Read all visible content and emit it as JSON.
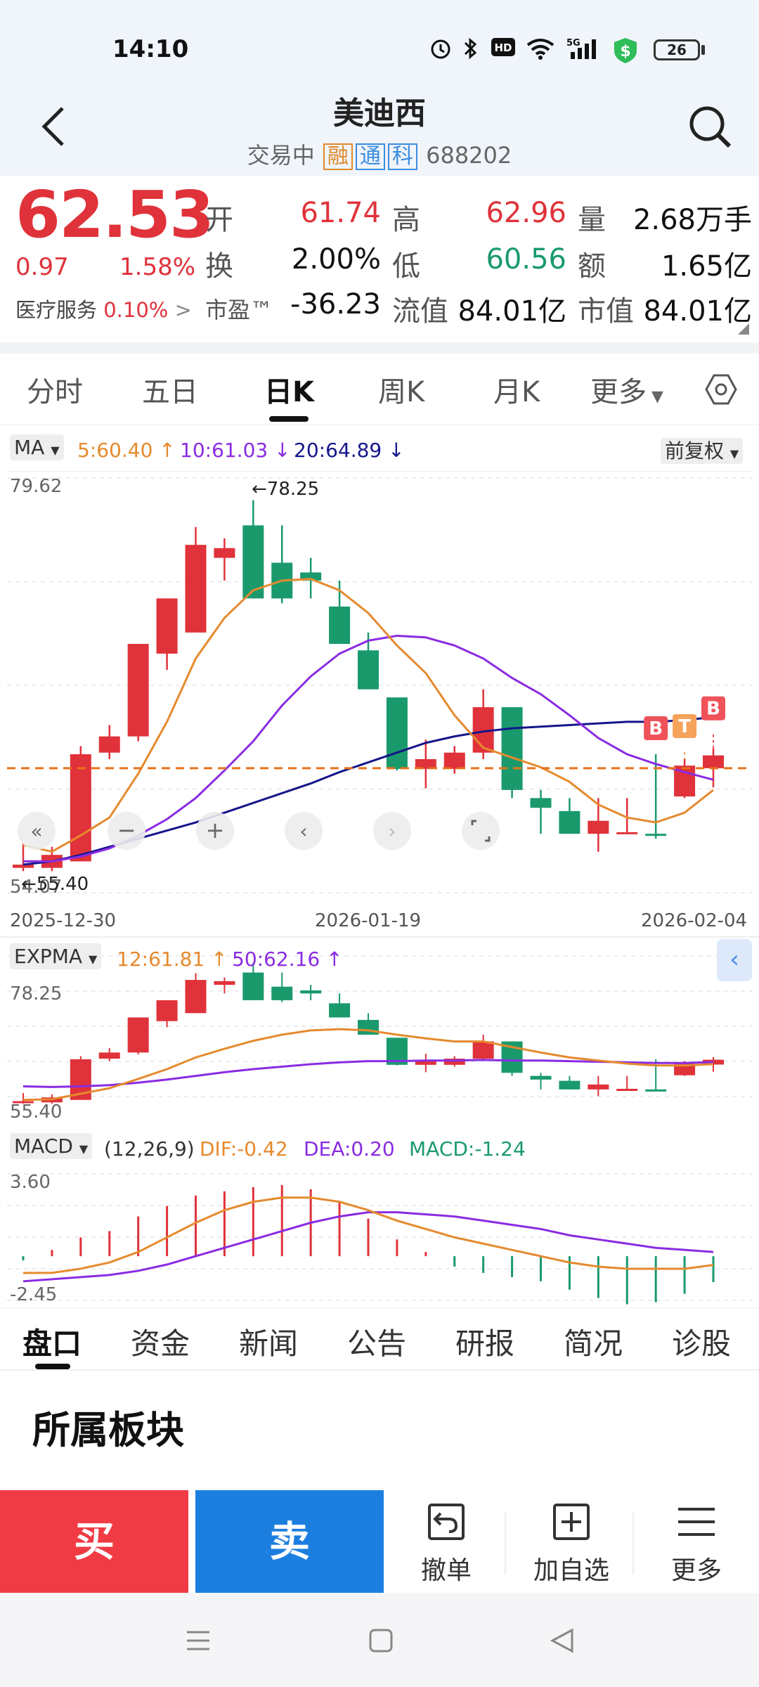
{
  "status": {
    "time": "14:10",
    "battery": "26"
  },
  "header": {
    "back_icon": "chevron-left-icon",
    "title": "美迪西",
    "trading_status": "交易中",
    "tags": [
      {
        "text": "融",
        "color": "#e08a2b"
      },
      {
        "text": "通",
        "color": "#3b8de0"
      },
      {
        "text": "科",
        "color": "#3b8de0"
      }
    ],
    "code": "688202",
    "search_icon": "search-icon"
  },
  "quote": {
    "price": "62.53",
    "change": "0.97",
    "change_pct": "1.58%",
    "sector": "医疗服务",
    "sector_pct": "0.10%",
    "open_label": "开",
    "open": "61.74",
    "high_label": "高",
    "high": "62.96",
    "volume_label": "量",
    "volume": "2.68万手",
    "turnover_label": "换",
    "turnover": "2.00%",
    "low_label": "低",
    "low": "60.56",
    "amount_label": "额",
    "amount": "1.65亿",
    "pe_label": "市盈™",
    "pe": "-36.23",
    "float_cap_label": "流值",
    "float_cap": "84.01亿",
    "mkt_cap_label": "市值",
    "mkt_cap": "84.01亿"
  },
  "period_tabs": [
    "分时",
    "五日",
    "日K",
    "周K",
    "月K",
    "更多"
  ],
  "active_period": "日K",
  "ma": {
    "label": "MA",
    "ma5": "5:60.40",
    "ma10": "10:61.03",
    "ma20": "20:64.89",
    "adjust": "前复权"
  },
  "kline": {
    "y_top": "79.62",
    "y_bottom": "54.07",
    "high_label": "←78.25",
    "low_label": "←55.40",
    "dates": [
      "2025-12-30",
      "2026-01-19",
      "2026-02-04"
    ],
    "markers": [
      "B",
      "T",
      "B"
    ]
  },
  "expma": {
    "label": "EXPMA",
    "e12": "12:61.81",
    "e50": "50:62.16",
    "y_top": "78.25",
    "y_bottom": "55.40"
  },
  "macd": {
    "label": "MACD",
    "params": "(12,26,9)",
    "dif": "DIF:-0.42",
    "dea": "DEA:0.20",
    "macd": "MACD:-1.24",
    "y_top": "3.60",
    "y_bottom": "-2.45"
  },
  "info_tabs": [
    "盘口",
    "资金",
    "新闻",
    "公告",
    "研报",
    "简况",
    "诊股"
  ],
  "section_title": "所属板块",
  "actions": {
    "buy": "买",
    "sell": "卖",
    "cancel": "撤单",
    "watch": "加自选",
    "more": "更多"
  },
  "chart_data": {
    "type": "candlestick",
    "candles": [
      {
        "o": 55.6,
        "c": 55.8,
        "h": 57.1,
        "l": 55.4
      },
      {
        "o": 55.6,
        "c": 56.4,
        "h": 56.9,
        "l": 55.4
      },
      {
        "o": 56.0,
        "c": 62.6,
        "h": 63.1,
        "l": 56.0
      },
      {
        "o": 62.7,
        "c": 63.7,
        "h": 64.4,
        "l": 62.3
      },
      {
        "o": 63.7,
        "c": 69.4,
        "h": 69.4,
        "l": 63.4
      },
      {
        "o": 68.8,
        "c": 72.2,
        "h": 72.2,
        "l": 67.8
      },
      {
        "o": 70.1,
        "c": 75.5,
        "h": 76.6,
        "l": 70.1
      },
      {
        "o": 74.7,
        "c": 75.3,
        "h": 75.9,
        "l": 73.3
      },
      {
        "o": 76.7,
        "c": 72.2,
        "h": 78.25,
        "l": 72.2
      },
      {
        "o": 74.4,
        "c": 72.2,
        "h": 76.7,
        "l": 71.9
      },
      {
        "o": 73.8,
        "c": 73.3,
        "h": 74.7,
        "l": 72.2
      },
      {
        "o": 71.7,
        "c": 69.4,
        "h": 73.3,
        "l": 69.4
      },
      {
        "o": 69.0,
        "c": 66.6,
        "h": 70.1,
        "l": 66.6
      },
      {
        "o": 66.1,
        "c": 61.7,
        "h": 66.1,
        "l": 61.6
      },
      {
        "o": 61.7,
        "c": 62.3,
        "h": 63.5,
        "l": 60.5
      },
      {
        "o": 61.7,
        "c": 62.7,
        "h": 63.1,
        "l": 61.4
      },
      {
        "o": 62.7,
        "c": 65.5,
        "h": 66.6,
        "l": 62.3
      },
      {
        "o": 65.5,
        "c": 60.4,
        "h": 65.5,
        "l": 59.9
      },
      {
        "o": 59.9,
        "c": 59.3,
        "h": 60.4,
        "l": 57.7
      },
      {
        "o": 59.1,
        "c": 57.7,
        "h": 59.9,
        "l": 57.7
      },
      {
        "o": 57.7,
        "c": 58.5,
        "h": 59.9,
        "l": 56.6
      },
      {
        "o": 57.7,
        "c": 57.8,
        "h": 59.9,
        "l": 57.7
      },
      {
        "o": 57.7,
        "c": 57.6,
        "h": 62.6,
        "l": 57.4
      },
      {
        "o": 60.0,
        "c": 61.9,
        "h": 62.3,
        "l": 59.9
      },
      {
        "o": 61.74,
        "c": 62.53,
        "h": 62.96,
        "l": 60.56
      }
    ],
    "ma5": [
      57.0,
      56.6,
      57.6,
      58.7,
      61.4,
      64.6,
      68.5,
      71.0,
      72.7,
      73.3,
      73.4,
      72.7,
      71.3,
      69.3,
      67.6,
      65.0,
      63.0,
      62.4,
      61.8,
      60.9,
      59.5,
      58.7,
      58.4,
      59.0,
      60.4
    ],
    "ma10": [
      56.0,
      56.0,
      56.3,
      56.8,
      57.6,
      58.6,
      59.9,
      61.6,
      63.4,
      65.6,
      67.4,
      68.8,
      69.6,
      69.9,
      69.8,
      69.3,
      68.5,
      67.3,
      66.3,
      65.0,
      63.6,
      62.6,
      62.0,
      61.5,
      61.03
    ],
    "ma20": [
      55.8,
      56.0,
      56.4,
      56.9,
      57.4,
      57.9,
      58.4,
      59.0,
      59.6,
      60.2,
      60.8,
      61.5,
      62.1,
      62.7,
      63.3,
      63.7,
      64.0,
      64.2,
      64.3,
      64.4,
      64.5,
      64.6,
      64.6,
      64.7,
      64.89
    ],
    "avg_price_line": 61.74,
    "y_range": [
      54.07,
      79.62
    ]
  }
}
